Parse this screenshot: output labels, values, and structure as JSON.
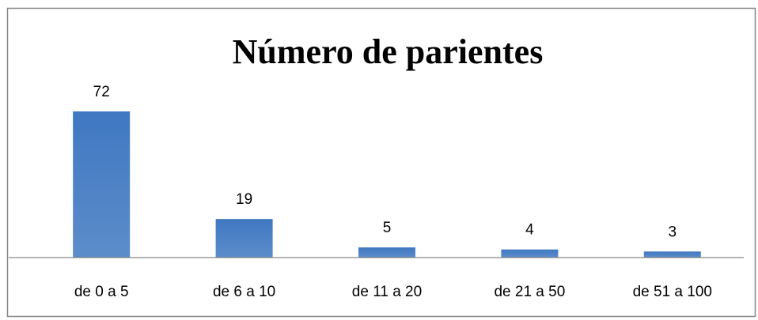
{
  "chart_data": {
    "type": "bar",
    "title": "Número de parientes",
    "categories": [
      "de 0 a 5",
      "de 6 a 10",
      "de 11 a 20",
      "de 21 a 50",
      "de 51 a 100"
    ],
    "values": [
      72,
      19,
      5,
      4,
      3
    ],
    "color": "#3f78c1"
  }
}
